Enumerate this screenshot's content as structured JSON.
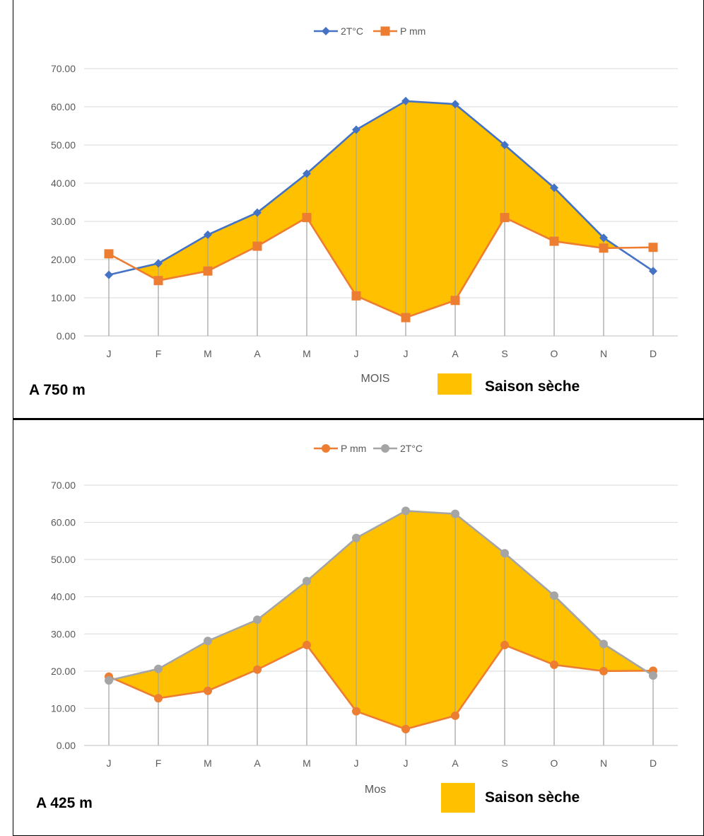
{
  "chart_data": [
    {
      "type": "line",
      "xlabel": "MOIS",
      "ylabel": "",
      "ylim": [
        0,
        70
      ],
      "yticks": [
        "0.00",
        "10.00",
        "20.00",
        "30.00",
        "40.00",
        "50.00",
        "60.00",
        "70.00"
      ],
      "categories": [
        "J",
        "F",
        "M",
        "A",
        "M",
        "J",
        "J",
        "A",
        "S",
        "O",
        "N",
        "D"
      ],
      "series": [
        {
          "name": "2T°C",
          "color": "#4472C4",
          "marker": "diamond",
          "values": [
            16.0,
            19.0,
            26.5,
            32.3,
            42.5,
            54.0,
            61.5,
            60.7,
            50.0,
            38.8,
            25.7,
            17.0
          ]
        },
        {
          "name": "P mm",
          "color": "#ED7D31",
          "marker": "square",
          "values": [
            21.5,
            14.5,
            17.0,
            23.5,
            31.0,
            10.5,
            4.8,
            9.3,
            31.0,
            24.8,
            23.0,
            23.2
          ]
        }
      ],
      "grid": true,
      "legend_position": "top",
      "fill_color": "#FFC000",
      "annotation": "A 750 m",
      "legend_box_label": "Saison sèche"
    },
    {
      "type": "line",
      "xlabel": "Mos",
      "ylabel": "",
      "ylim": [
        0,
        70
      ],
      "yticks": [
        "0.00",
        "10.00",
        "20.00",
        "30.00",
        "40.00",
        "50.00",
        "60.00",
        "70.00"
      ],
      "categories": [
        "J",
        "F",
        "M",
        "A",
        "M",
        "J",
        "J",
        "A",
        "S",
        "O",
        "N",
        "D"
      ],
      "series": [
        {
          "name": "P mm",
          "color": "#ED7D31",
          "marker": "circle",
          "values": [
            18.5,
            12.7,
            14.7,
            20.4,
            27.0,
            9.2,
            4.4,
            8.0,
            27.0,
            21.7,
            20.0,
            20.1
          ]
        },
        {
          "name": "2T°C",
          "color": "#A5A5A5",
          "marker": "circle",
          "values": [
            17.5,
            20.6,
            28.1,
            33.8,
            44.2,
            55.8,
            63.1,
            62.3,
            51.7,
            40.3,
            27.3,
            18.8
          ]
        }
      ],
      "grid": true,
      "legend_position": "top",
      "fill_color": "#FFC000",
      "annotation": "A 425 m",
      "legend_box_label": "Saison sèche"
    }
  ]
}
